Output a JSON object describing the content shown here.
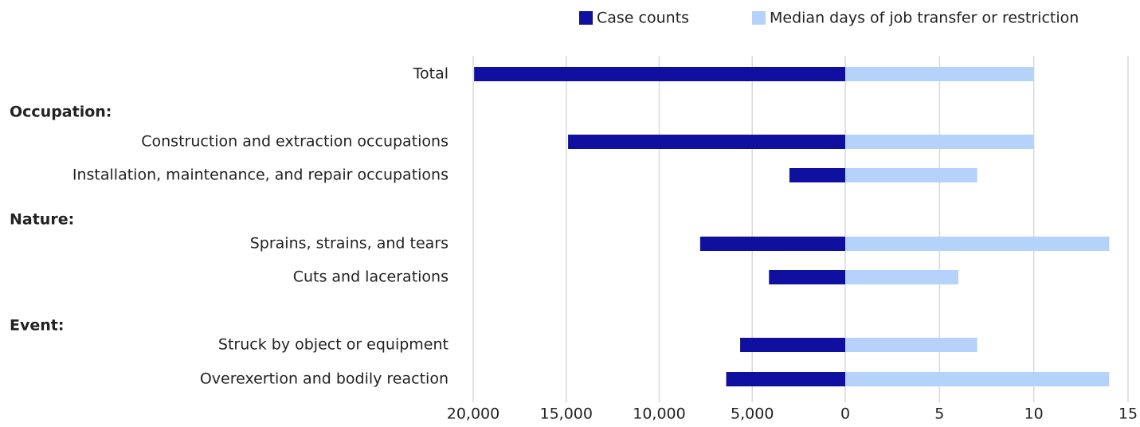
{
  "chart_data": {
    "type": "butterfly_bar",
    "categories": [
      "Total",
      "Occupation:",
      "Construction and extraction occupations",
      "Installation, maintenance, and repair occupations",
      "Nature:",
      "Sprains, strains, and tears",
      "Cuts and lacerations",
      "Event:",
      "Struck by object or equipment",
      "Overexertion and bodily reaction"
    ],
    "series": [
      {
        "name": "Case counts",
        "color": "#1010a0",
        "values": [
          19950,
          null,
          14900,
          3000,
          null,
          7800,
          4100,
          null,
          5650,
          6400
        ]
      },
      {
        "name": "Median days of job transfer or restriction",
        "color": "#b4d2fa",
        "axis": "x2",
        "values": [
          10,
          null,
          10,
          7,
          null,
          14,
          6,
          null,
          7,
          14
        ]
      }
    ],
    "xlim": [
      20000,
      0
    ],
    "xticks": [
      {
        "value": 20000,
        "label": "20,000"
      },
      {
        "value": 15000,
        "label": "15,000"
      },
      {
        "value": 10000,
        "label": "10,000"
      },
      {
        "value": 5000,
        "label": "5,000"
      },
      0
    ],
    "x2lim": [
      0,
      15
    ],
    "x2ticks": [
      5,
      10,
      15
    ],
    "grid": true,
    "legend": "top"
  }
}
